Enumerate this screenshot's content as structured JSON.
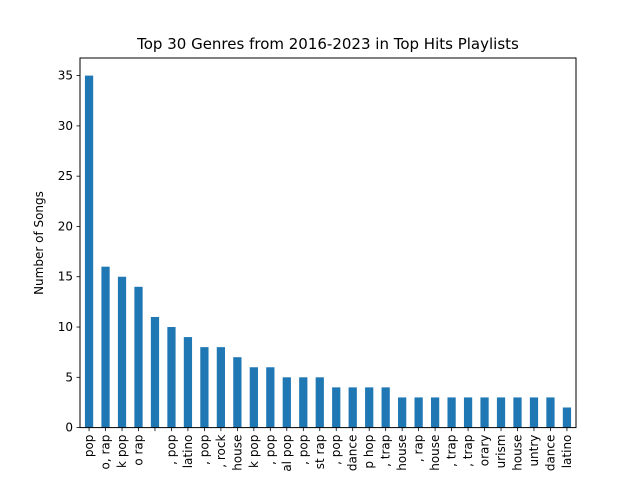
{
  "chart_data": {
    "type": "bar",
    "title": "Top 30 Genres from 2016-2023 in Top Hits Playlists",
    "xlabel": "",
    "ylabel": "Number of Songs",
    "ylim": [
      0,
      36.75
    ],
    "yticks": [
      0,
      5,
      10,
      15,
      20,
      25,
      30,
      35
    ],
    "grid": false,
    "bar_color": "#1f77b4",
    "categories": [
      "pop",
      "o, rap",
      "k pop",
      "o rap",
      "",
      ", pop",
      "latino",
      ", pop",
      ", rock",
      "house",
      "k pop",
      ", pop",
      "al pop",
      ", pop",
      "st rap",
      ", pop",
      "dance",
      "p hop",
      ", trap",
      "house",
      ", rap",
      "house",
      ", trap",
      ", trap",
      "orary",
      "urism",
      "house",
      "untry",
      "dance",
      "latino"
    ],
    "values": [
      35,
      16,
      15,
      14,
      11,
      10,
      9,
      8,
      8,
      7,
      6,
      6,
      5,
      5,
      5,
      4,
      4,
      4,
      4,
      3,
      3,
      3,
      3,
      3,
      3,
      3,
      3,
      3,
      3,
      2
    ]
  }
}
